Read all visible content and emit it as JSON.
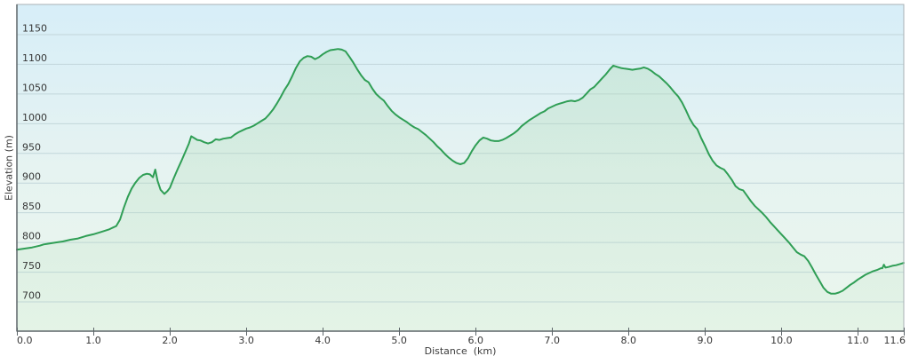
{
  "chart_data": {
    "type": "area",
    "xlabel": "Distance  (km)",
    "ylabel": "Elevation (m)",
    "xlim": [
      0,
      11.6
    ],
    "ylim": [
      650,
      1200
    ],
    "grid": true,
    "x_tick_values": [
      0,
      1,
      2,
      3,
      4,
      5,
      6,
      7,
      8,
      9,
      10,
      11,
      11.6
    ],
    "x_tick_labels": [
      "0.0",
      "1.0",
      "2.0",
      "3.0",
      "4.0",
      "5.0",
      "6.0",
      "7.0",
      "8.0",
      "9.0",
      "10.0",
      "11.0",
      "11.6"
    ],
    "y_tick_values": [
      1150,
      1100,
      1050,
      1000,
      950,
      900,
      850,
      800,
      750,
      700
    ],
    "y_tick_labels": [
      "1150",
      "1100",
      "1050",
      "1000",
      "950",
      "900",
      "850",
      "800",
      "750",
      "700"
    ],
    "series_name": "elevation_m",
    "points": [
      [
        0,
        787
      ],
      [
        0.1,
        789
      ],
      [
        0.2,
        791
      ],
      [
        0.3,
        794
      ],
      [
        0.35,
        796
      ],
      [
        0.4,
        797
      ],
      [
        0.5,
        799
      ],
      [
        0.6,
        801
      ],
      [
        0.7,
        804
      ],
      [
        0.8,
        806
      ],
      [
        0.9,
        810
      ],
      [
        1.0,
        813
      ],
      [
        1.1,
        817
      ],
      [
        1.2,
        821
      ],
      [
        1.3,
        827
      ],
      [
        1.35,
        838
      ],
      [
        1.4,
        858
      ],
      [
        1.45,
        876
      ],
      [
        1.5,
        890
      ],
      [
        1.55,
        900
      ],
      [
        1.6,
        908
      ],
      [
        1.65,
        913
      ],
      [
        1.7,
        915
      ],
      [
        1.74,
        914
      ],
      [
        1.78,
        909
      ],
      [
        1.81,
        922
      ],
      [
        1.84,
        903
      ],
      [
        1.88,
        888
      ],
      [
        1.93,
        881
      ],
      [
        1.97,
        886
      ],
      [
        2.0,
        891
      ],
      [
        2.05,
        907
      ],
      [
        2.1,
        922
      ],
      [
        2.15,
        936
      ],
      [
        2.2,
        951
      ],
      [
        2.25,
        966
      ],
      [
        2.28,
        978
      ],
      [
        2.32,
        975
      ],
      [
        2.36,
        972
      ],
      [
        2.4,
        971
      ],
      [
        2.45,
        968
      ],
      [
        2.5,
        966
      ],
      [
        2.55,
        968
      ],
      [
        2.6,
        973
      ],
      [
        2.65,
        972
      ],
      [
        2.7,
        974
      ],
      [
        2.75,
        975
      ],
      [
        2.8,
        976
      ],
      [
        2.85,
        981
      ],
      [
        2.9,
        985
      ],
      [
        2.95,
        988
      ],
      [
        3.0,
        991
      ],
      [
        3.05,
        993
      ],
      [
        3.1,
        996
      ],
      [
        3.15,
        1000
      ],
      [
        3.2,
        1004
      ],
      [
        3.25,
        1008
      ],
      [
        3.3,
        1015
      ],
      [
        3.35,
        1023
      ],
      [
        3.4,
        1033
      ],
      [
        3.45,
        1044
      ],
      [
        3.5,
        1056
      ],
      [
        3.55,
        1066
      ],
      [
        3.6,
        1079
      ],
      [
        3.65,
        1093
      ],
      [
        3.7,
        1104
      ],
      [
        3.75,
        1110
      ],
      [
        3.8,
        1113
      ],
      [
        3.85,
        1112
      ],
      [
        3.9,
        1108
      ],
      [
        3.95,
        1111
      ],
      [
        4.0,
        1116
      ],
      [
        4.05,
        1120
      ],
      [
        4.1,
        1123
      ],
      [
        4.15,
        1124
      ],
      [
        4.2,
        1125
      ],
      [
        4.25,
        1124
      ],
      [
        4.3,
        1121
      ],
      [
        4.35,
        1112
      ],
      [
        4.4,
        1102
      ],
      [
        4.45,
        1091
      ],
      [
        4.5,
        1081
      ],
      [
        4.55,
        1073
      ],
      [
        4.6,
        1069
      ],
      [
        4.65,
        1058
      ],
      [
        4.7,
        1049
      ],
      [
        4.75,
        1043
      ],
      [
        4.8,
        1038
      ],
      [
        4.85,
        1029
      ],
      [
        4.9,
        1021
      ],
      [
        4.95,
        1015
      ],
      [
        5.0,
        1010
      ],
      [
        5.05,
        1006
      ],
      [
        5.1,
        1002
      ],
      [
        5.15,
        997
      ],
      [
        5.2,
        993
      ],
      [
        5.25,
        990
      ],
      [
        5.3,
        985
      ],
      [
        5.35,
        980
      ],
      [
        5.4,
        974
      ],
      [
        5.45,
        968
      ],
      [
        5.5,
        961
      ],
      [
        5.55,
        955
      ],
      [
        5.6,
        948
      ],
      [
        5.65,
        942
      ],
      [
        5.7,
        937
      ],
      [
        5.75,
        933
      ],
      [
        5.8,
        931
      ],
      [
        5.85,
        933
      ],
      [
        5.9,
        941
      ],
      [
        5.95,
        953
      ],
      [
        6.0,
        963
      ],
      [
        6.05,
        971
      ],
      [
        6.1,
        976
      ],
      [
        6.15,
        974
      ],
      [
        6.2,
        971
      ],
      [
        6.25,
        970
      ],
      [
        6.3,
        970
      ],
      [
        6.35,
        972
      ],
      [
        6.4,
        975
      ],
      [
        6.45,
        979
      ],
      [
        6.5,
        983
      ],
      [
        6.55,
        988
      ],
      [
        6.6,
        995
      ],
      [
        6.65,
        1000
      ],
      [
        6.7,
        1005
      ],
      [
        6.75,
        1009
      ],
      [
        6.8,
        1013
      ],
      [
        6.85,
        1017
      ],
      [
        6.9,
        1020
      ],
      [
        6.95,
        1025
      ],
      [
        7.0,
        1028
      ],
      [
        7.05,
        1031
      ],
      [
        7.1,
        1033
      ],
      [
        7.15,
        1035
      ],
      [
        7.2,
        1037
      ],
      [
        7.25,
        1038
      ],
      [
        7.3,
        1037
      ],
      [
        7.35,
        1039
      ],
      [
        7.4,
        1043
      ],
      [
        7.45,
        1050
      ],
      [
        7.5,
        1057
      ],
      [
        7.55,
        1061
      ],
      [
        7.6,
        1068
      ],
      [
        7.65,
        1075
      ],
      [
        7.7,
        1082
      ],
      [
        7.75,
        1090
      ],
      [
        7.8,
        1097
      ],
      [
        7.85,
        1095
      ],
      [
        7.9,
        1093
      ],
      [
        7.95,
        1092
      ],
      [
        8.0,
        1091
      ],
      [
        8.05,
        1090
      ],
      [
        8.1,
        1091
      ],
      [
        8.15,
        1092
      ],
      [
        8.2,
        1094
      ],
      [
        8.25,
        1092
      ],
      [
        8.3,
        1088
      ],
      [
        8.35,
        1083
      ],
      [
        8.4,
        1079
      ],
      [
        8.45,
        1073
      ],
      [
        8.5,
        1067
      ],
      [
        8.55,
        1060
      ],
      [
        8.6,
        1052
      ],
      [
        8.65,
        1045
      ],
      [
        8.7,
        1035
      ],
      [
        8.75,
        1022
      ],
      [
        8.8,
        1008
      ],
      [
        8.85,
        997
      ],
      [
        8.9,
        990
      ],
      [
        8.95,
        975
      ],
      [
        9.0,
        962
      ],
      [
        9.05,
        948
      ],
      [
        9.1,
        937
      ],
      [
        9.15,
        929
      ],
      [
        9.2,
        925
      ],
      [
        9.25,
        922
      ],
      [
        9.3,
        914
      ],
      [
        9.35,
        905
      ],
      [
        9.4,
        894
      ],
      [
        9.45,
        889
      ],
      [
        9.5,
        887
      ],
      [
        9.55,
        878
      ],
      [
        9.6,
        869
      ],
      [
        9.65,
        861
      ],
      [
        9.7,
        855
      ],
      [
        9.75,
        849
      ],
      [
        9.8,
        842
      ],
      [
        9.85,
        834
      ],
      [
        9.9,
        827
      ],
      [
        9.95,
        820
      ],
      [
        10.0,
        813
      ],
      [
        10.05,
        806
      ],
      [
        10.1,
        799
      ],
      [
        10.15,
        791
      ],
      [
        10.2,
        783
      ],
      [
        10.25,
        779
      ],
      [
        10.3,
        776
      ],
      [
        10.35,
        768
      ],
      [
        10.4,
        757
      ],
      [
        10.45,
        745
      ],
      [
        10.5,
        734
      ],
      [
        10.55,
        723
      ],
      [
        10.6,
        716
      ],
      [
        10.65,
        713
      ],
      [
        10.7,
        713
      ],
      [
        10.75,
        715
      ],
      [
        10.8,
        718
      ],
      [
        10.85,
        723
      ],
      [
        10.9,
        728
      ],
      [
        10.95,
        732
      ],
      [
        11.0,
        737
      ],
      [
        11.05,
        741
      ],
      [
        11.1,
        745
      ],
      [
        11.15,
        748
      ],
      [
        11.2,
        751
      ],
      [
        11.25,
        753
      ],
      [
        11.3,
        756
      ],
      [
        11.32,
        756
      ],
      [
        11.34,
        762
      ],
      [
        11.36,
        757
      ],
      [
        11.4,
        758
      ],
      [
        11.45,
        760
      ],
      [
        11.5,
        761
      ],
      [
        11.55,
        763
      ],
      [
        11.6,
        765
      ]
    ]
  },
  "colors": {
    "line": "#2f9e55",
    "background_top": "#d7eef8",
    "background_mid": "#e6f3f1",
    "background_bottom": "#eaf6ec",
    "area_fill": "#aedbb5",
    "gridline": "#c2d6da",
    "axis_dark": "#5d6569",
    "axis_light": "#a9b2b4",
    "text": "#363636"
  }
}
